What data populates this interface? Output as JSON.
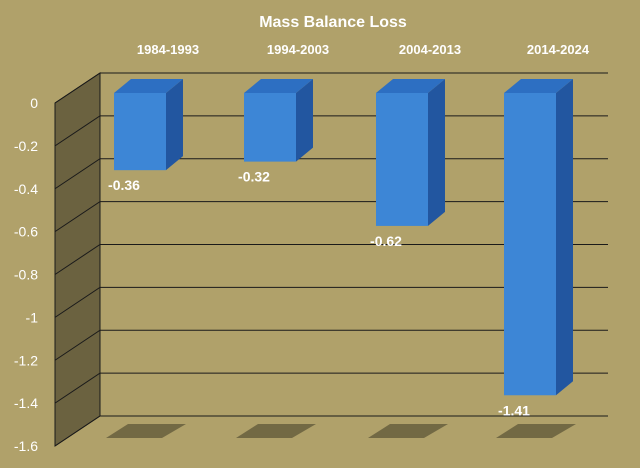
{
  "chart_data": {
    "type": "bar",
    "title": "Mass Balance  Loss",
    "categories": [
      "1984-1993",
      "1994-2003",
      "2004-2013",
      "2014-2024"
    ],
    "values": [
      -0.36,
      -0.32,
      -0.62,
      -1.41
    ],
    "data_labels": [
      "-0.36",
      "-0.32",
      "-0.62",
      "-1.41"
    ],
    "ylim": [
      -1.6,
      0
    ],
    "yticks": [
      0,
      -0.2,
      -0.4,
      -0.6,
      -0.8,
      -1,
      -1.2,
      -1.4,
      -1.6
    ],
    "ytick_labels": [
      "0",
      "-0.2",
      "-0.4",
      "-0.6",
      "-0.8",
      "-1",
      "-1.2",
      "-1.4",
      "-1.6"
    ],
    "category_label_position": "top",
    "grid": true,
    "style": "3d-column",
    "colors": {
      "background": "#b0a16a",
      "bar_front": "#3d86d6",
      "bar_side": "#2256a0",
      "bar_top": "#2d6fc2",
      "wall": "#6b6240",
      "gridline": "#1a1a1a",
      "shadow": "#6b6340",
      "label_text": "#ffffff",
      "axis_text": "#ffffff"
    }
  }
}
